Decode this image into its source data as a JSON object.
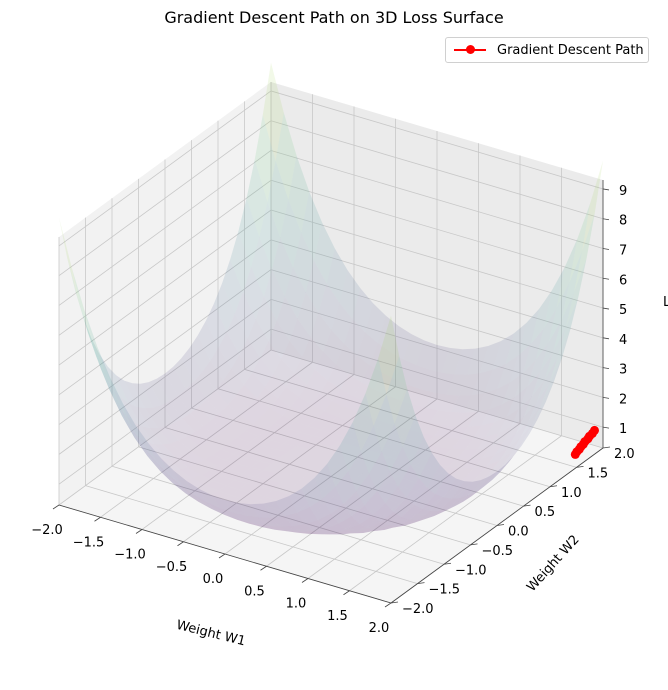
{
  "chart_data": {
    "type": "surface3d",
    "title": "Gradient Descent Path on 3D Loss Surface",
    "xlabel": "Weight W1",
    "ylabel": "Weight W2",
    "zlabel": "L",
    "xlim": [
      -2,
      2
    ],
    "ylim": [
      -2,
      2
    ],
    "zlim": [
      0.3,
      9.3
    ],
    "x_ticks": [
      "−2.0",
      "−1.5",
      "−1.0",
      "−0.5",
      "0.0",
      "0.5",
      "1.0",
      "1.5",
      "2.0"
    ],
    "y_ticks": [
      "−2.0",
      "−1.5",
      "−1.0",
      "−0.5",
      "0.0",
      "0.5",
      "1.0",
      "1.5",
      "2.0"
    ],
    "z_ticks": [
      "1",
      "2",
      "3",
      "4",
      "5",
      "6",
      "7",
      "8",
      "9"
    ],
    "grid": true,
    "legend_position": "top-right",
    "surface_colormap": "viridis",
    "series": [
      {
        "name": "Gradient Descent Path",
        "color": "#ff0000",
        "marker": "circle",
        "points": [
          {
            "w1": 1.93,
            "w2": 1.95,
            "loss": 0.9
          },
          {
            "w1": 1.93,
            "w2": 1.91,
            "loss": 0.85
          },
          {
            "w1": 1.92,
            "w2": 1.87,
            "loss": 0.8
          },
          {
            "w1": 1.92,
            "w2": 1.84,
            "loss": 0.75
          },
          {
            "w1": 1.91,
            "w2": 1.8,
            "loss": 0.7
          },
          {
            "w1": 1.91,
            "w2": 1.77,
            "loss": 0.65
          },
          {
            "w1": 1.9,
            "w2": 1.74,
            "loss": 0.6
          },
          {
            "w1": 1.9,
            "w2": 1.71,
            "loss": 0.55
          },
          {
            "w1": 1.89,
            "w2": 1.68,
            "loss": 0.5
          },
          {
            "w1": 1.89,
            "w2": 1.65,
            "loss": 0.45
          }
        ]
      }
    ]
  },
  "legend": {
    "label": "Gradient Descent Path"
  }
}
